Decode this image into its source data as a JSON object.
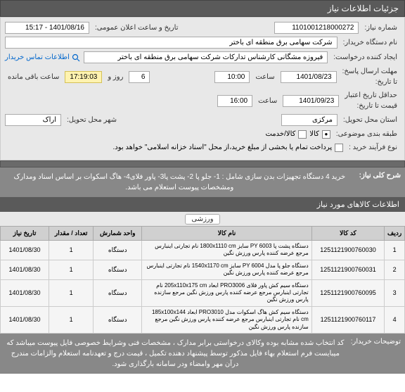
{
  "header": {
    "title": "جزئیات اطلاعات نیاز"
  },
  "form": {
    "niaz_no_label": "شماره نیاز:",
    "niaz_no": "1101001218000272",
    "public_time_label": "تاریخ و ساعت اعلان عمومی:",
    "public_time": "1401/08/16 - 15:17",
    "buyer_label": "نام دستگاه خریدار:",
    "buyer": "شرکت سهامی برق منطقه ای باختر",
    "requester_label": "ایجاد کننده درخواست:",
    "requester": "فیروزه مشگانی کارشناس تدارکات شرکت سهامی برق منطقه ای باختر",
    "contact_link": "اطلاعات تماس خریدار",
    "deadline_label": "مهلت ارسال پاسخ:",
    "deadline_to_label": "تا تاریخ:",
    "deadline_date": "1401/08/23",
    "deadline_time_label": "ساعت",
    "deadline_time": "10:00",
    "days_remaining_value": "6",
    "days_remaining_label": "روز و",
    "time_remaining": "17:19:03",
    "time_remaining_label": "ساعت باقی مانده",
    "validity_label": "حداقل تاریخ اعتبار",
    "validity_sub": "قیمت تا تاریخ:",
    "validity_date": "1401/09/23",
    "validity_time_label": "ساعت",
    "validity_time": "16:00",
    "province_label": "استان محل تحویل:",
    "province": "مرکزی",
    "city_label": "شهر محل تحویل:",
    "city": "اراک",
    "group_label": "طبقه بندی موضوعی:",
    "group_opt1": "کالا",
    "group_opt2": "کالا/خدمت",
    "process_label": "نوع فرآیند خرید :",
    "process_note": "پرداخت تمام یا بخشی از مبلغ خرید،از محل \"اسناد خزانه اسلامی\" خواهد بود."
  },
  "summary": {
    "label": "شرح کلی نیاز:",
    "text": "خرید 4 دستگاه تجهیزات بدن سازی شامل : 1- جلو پا 2- پشت پا3- پاور فلای4- هاگ اسکوات بر اساس اسناد ومدارک ومشخصات پیوست استعلام می باشد."
  },
  "items_section": {
    "title": "اطلاعات کالاهای مورد نیاز",
    "badge": "ورزشی"
  },
  "table": {
    "columns": [
      "ردیف",
      "کد کالا",
      "نام کالا",
      "واحد شمارش",
      "تعداد / مقدار",
      "تاریخ نیاز"
    ],
    "col_widths": [
      "5%",
      "18%",
      "42%",
      "12%",
      "11%",
      "12%"
    ],
    "rows": [
      {
        "idx": "1",
        "code": "1251121900760030",
        "name": "دستگاه پشت پا PY 6003 سایز 1800x1110 cm نام تجارتی اینبارس مرجع عرضه کننده پارس ورزش نگین",
        "unit": "دستگاه",
        "qty": "1",
        "date": "1401/08/30"
      },
      {
        "idx": "2",
        "code": "1251121900760031",
        "name": "دستگاه جلو پا مدل PY 6004 سایز 1540x1170 cm نام تجارتی اینبارس مرجع عرضه کننده پارس ورزش نگین",
        "unit": "دستگاه",
        "qty": "1",
        "date": "1401/08/30"
      },
      {
        "idx": "3",
        "code": "1251121900760095",
        "name": "دستگاه سیم کش پاور فلای PRO3006 ابعاد 205x110x175 cm نام تجارتی اینبارس مرجع عرضه کننده پارس ورزش نگین مرجع سازنده پارس ورزش نگین",
        "unit": "دستگاه",
        "qty": "1",
        "date": "1401/08/30"
      },
      {
        "idx": "4",
        "code": "1251121900760117",
        "name": "دستگاه سیم کش هاگ اسکوات مدل PRO3010 ابعاد 185x100x144 cm نام تجارتی اینبارس مرجع عرضه کننده پارس ورزش نگین مرجع سازنده پارس ورزش نگین",
        "unit": "دستگاه",
        "qty": "1",
        "date": "1401/08/30"
      }
    ]
  },
  "footer": {
    "label": "توضیحات خریدار:",
    "text": "کد انتخاب شده مشابه بوده وکالای درخواستی برابر مدارک ، مشخصات فنی وشرایط خصوصی فایل پیوست میباشد که میبایست فرم استعلام بهاء فایل مذکور توسط پیشنهاد دهنده تکمیل ، قیمت درج و تعهدنامه استعلام والزامات  مندرج درآن مهر وامضاء ودر سامانه بارگذاری شود."
  }
}
